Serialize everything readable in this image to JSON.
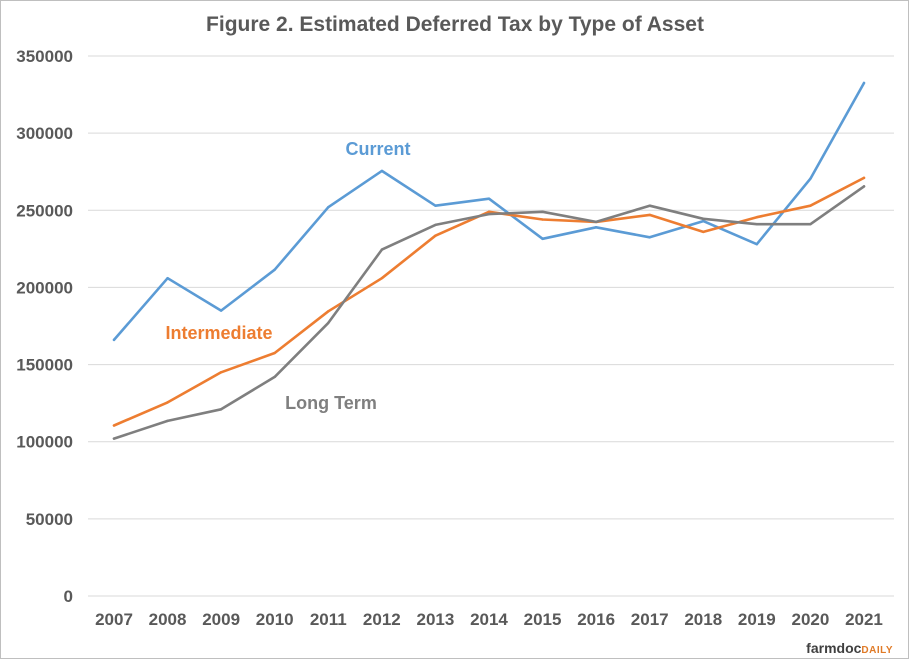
{
  "chart_data": {
    "type": "line",
    "title": "Figure  2.  Estimated  Deferred  Tax  by  Type  of  Asset",
    "xlabel": "",
    "ylabel": "",
    "categories": [
      "2007",
      "2008",
      "2009",
      "2010",
      "2011",
      "2012",
      "2013",
      "2014",
      "2015",
      "2016",
      "2017",
      "2018",
      "2019",
      "2020",
      "2021"
    ],
    "y_ticks": [
      "0",
      "50000",
      "100000",
      "150000",
      "200000",
      "250000",
      "300000",
      "350000"
    ],
    "ylim": [
      0,
      350000
    ],
    "grid": true,
    "legend": "inline labels",
    "series": [
      {
        "name": "Current",
        "color": "#5b9bd5",
        "values": [
          166000,
          206000,
          185000,
          211500,
          252000,
          275500,
          253000,
          257500,
          231500,
          239000,
          232500,
          243000,
          228000,
          270500,
          332500
        ]
      },
      {
        "name": "Intermediate",
        "color": "#ed7d31",
        "values": [
          110500,
          125500,
          145000,
          157500,
          184500,
          206000,
          233500,
          249000,
          244000,
          242500,
          247000,
          236000,
          245500,
          253000,
          271000
        ]
      },
      {
        "name": "Long Term",
        "color": "#7f7f7f",
        "values": [
          102000,
          113500,
          121000,
          142000,
          177000,
          224500,
          240500,
          247500,
          249000,
          242500,
          253000,
          244500,
          241000,
          241000,
          265500
        ]
      }
    ]
  },
  "branding": {
    "logo_main": "farmdoc",
    "logo_suffix": "DAILY"
  }
}
